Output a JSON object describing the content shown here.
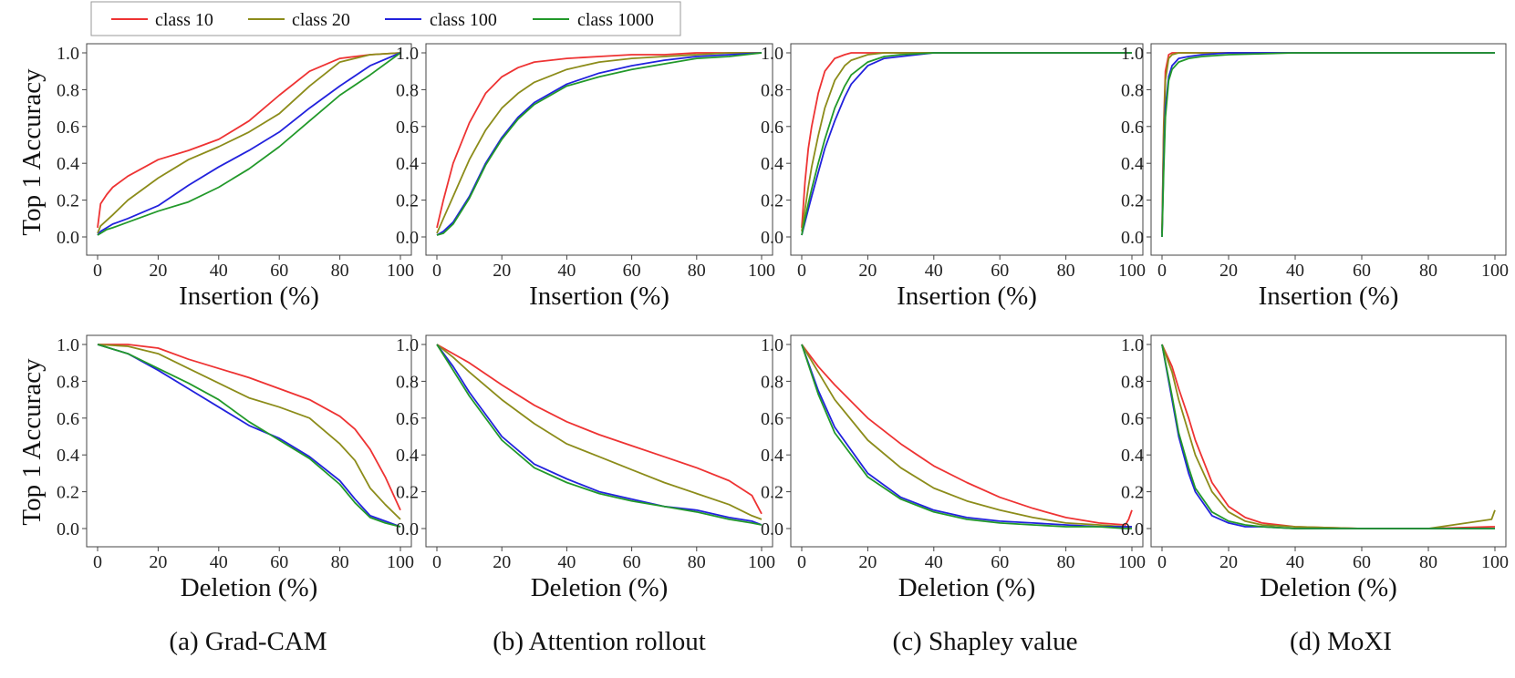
{
  "legend": {
    "placement": "top-left",
    "entries": [
      {
        "name": "class 10",
        "color": "#ee3333"
      },
      {
        "name": "class 20",
        "color": "#8c8c1a"
      },
      {
        "name": "class 100",
        "color": "#2222dd"
      },
      {
        "name": "class 1000",
        "color": "#22992a"
      }
    ]
  },
  "row_ylabels": [
    "Top 1 Accuracy",
    "Top 1 Accuracy"
  ],
  "captions": [
    "(a) Grad-CAM",
    "(b) Attention rollout",
    "(c) Shapley value",
    "(d) MoXI"
  ],
  "chart_data": [
    {
      "type": "line",
      "method": "Grad-CAM",
      "xlabel": "Insertion (%)",
      "ylabel": "Top 1 Accuracy",
      "xlim": [
        0,
        100
      ],
      "ylim": [
        0,
        1
      ],
      "xticks": [
        0,
        20,
        40,
        60,
        80,
        100
      ],
      "yticks": [
        0.0,
        0.2,
        0.4,
        0.6,
        0.8,
        1.0
      ],
      "x": [
        0,
        1,
        3,
        5,
        10,
        20,
        30,
        40,
        50,
        60,
        70,
        80,
        90,
        100
      ],
      "series": [
        {
          "name": "class 10",
          "values": [
            0.05,
            0.18,
            0.23,
            0.27,
            0.33,
            0.42,
            0.47,
            0.53,
            0.63,
            0.77,
            0.9,
            0.97,
            0.99,
            1.0
          ]
        },
        {
          "name": "class 20",
          "values": [
            0.02,
            0.06,
            0.09,
            0.12,
            0.2,
            0.32,
            0.42,
            0.49,
            0.57,
            0.67,
            0.82,
            0.95,
            0.99,
            1.0
          ]
        },
        {
          "name": "class 100",
          "values": [
            0.01,
            0.03,
            0.05,
            0.07,
            0.1,
            0.17,
            0.28,
            0.38,
            0.47,
            0.57,
            0.7,
            0.82,
            0.93,
            1.0
          ]
        },
        {
          "name": "class 1000",
          "values": [
            0.01,
            0.02,
            0.04,
            0.05,
            0.08,
            0.14,
            0.19,
            0.27,
            0.37,
            0.49,
            0.63,
            0.77,
            0.88,
            1.0
          ]
        }
      ]
    },
    {
      "type": "line",
      "method": "Attention rollout",
      "xlabel": "Insertion (%)",
      "ylabel": "",
      "xlim": [
        0,
        100
      ],
      "ylim": [
        0,
        1
      ],
      "xticks": [
        0,
        20,
        40,
        60,
        80,
        100
      ],
      "yticks": [
        0.0,
        0.2,
        0.4,
        0.6,
        0.8,
        1.0
      ],
      "x": [
        0,
        2,
        5,
        10,
        15,
        20,
        25,
        30,
        40,
        50,
        60,
        70,
        80,
        90,
        100
      ],
      "series": [
        {
          "name": "class 10",
          "values": [
            0.05,
            0.2,
            0.4,
            0.62,
            0.78,
            0.87,
            0.92,
            0.95,
            0.97,
            0.98,
            0.99,
            0.99,
            1.0,
            1.0,
            1.0
          ]
        },
        {
          "name": "class 20",
          "values": [
            0.02,
            0.1,
            0.22,
            0.42,
            0.58,
            0.7,
            0.78,
            0.84,
            0.91,
            0.95,
            0.97,
            0.98,
            0.99,
            1.0,
            1.0
          ]
        },
        {
          "name": "class 100",
          "values": [
            0.01,
            0.03,
            0.08,
            0.22,
            0.4,
            0.54,
            0.65,
            0.73,
            0.83,
            0.89,
            0.93,
            0.96,
            0.98,
            0.99,
            1.0
          ]
        },
        {
          "name": "class 1000",
          "values": [
            0.01,
            0.02,
            0.07,
            0.21,
            0.39,
            0.53,
            0.64,
            0.72,
            0.82,
            0.87,
            0.91,
            0.94,
            0.97,
            0.98,
            1.0
          ]
        }
      ]
    },
    {
      "type": "line",
      "method": "Shapley value",
      "xlabel": "Insertion (%)",
      "ylabel": "",
      "xlim": [
        0,
        100
      ],
      "ylim": [
        0,
        1
      ],
      "xticks": [
        0,
        20,
        40,
        60,
        80,
        100
      ],
      "yticks": [
        0.0,
        0.2,
        0.4,
        0.6,
        0.8,
        1.0
      ],
      "x": [
        0,
        1,
        2,
        3,
        5,
        7,
        10,
        13,
        15,
        20,
        25,
        30,
        40,
        50,
        60,
        80,
        100
      ],
      "series": [
        {
          "name": "class 10",
          "values": [
            0.05,
            0.3,
            0.48,
            0.6,
            0.78,
            0.9,
            0.97,
            0.99,
            1.0,
            1.0,
            1.0,
            1.0,
            1.0,
            1.0,
            1.0,
            1.0,
            1.0
          ]
        },
        {
          "name": "class 20",
          "values": [
            0.03,
            0.15,
            0.27,
            0.38,
            0.55,
            0.7,
            0.85,
            0.93,
            0.96,
            0.99,
            1.0,
            1.0,
            1.0,
            1.0,
            1.0,
            1.0,
            1.0
          ]
        },
        {
          "name": "class 100",
          "values": [
            0.01,
            0.08,
            0.15,
            0.22,
            0.35,
            0.48,
            0.63,
            0.76,
            0.83,
            0.93,
            0.97,
            0.98,
            1.0,
            1.0,
            1.0,
            1.0,
            1.0
          ]
        },
        {
          "name": "class 1000",
          "values": [
            0.01,
            0.1,
            0.18,
            0.26,
            0.4,
            0.53,
            0.7,
            0.82,
            0.88,
            0.95,
            0.98,
            0.99,
            1.0,
            1.0,
            1.0,
            1.0,
            1.0
          ]
        }
      ]
    },
    {
      "type": "line",
      "method": "MoXI",
      "xlabel": "Insertion (%)",
      "ylabel": "",
      "xlim": [
        0,
        100
      ],
      "ylim": [
        0,
        1
      ],
      "xticks": [
        0,
        20,
        40,
        60,
        80,
        100
      ],
      "yticks": [
        0.0,
        0.2,
        0.4,
        0.6,
        0.8,
        1.0
      ],
      "x": [
        0,
        0.5,
        1,
        2,
        3,
        5,
        8,
        12,
        20,
        40,
        100
      ],
      "series": [
        {
          "name": "class 10",
          "values": [
            0.02,
            0.6,
            0.9,
            0.99,
            1.0,
            1.0,
            1.0,
            1.0,
            1.0,
            1.0,
            1.0
          ]
        },
        {
          "name": "class 20",
          "values": [
            0.02,
            0.55,
            0.85,
            0.97,
            0.99,
            1.0,
            1.0,
            1.0,
            1.0,
            1.0,
            1.0
          ]
        },
        {
          "name": "class 100",
          "values": [
            0.0,
            0.4,
            0.7,
            0.87,
            0.93,
            0.97,
            0.98,
            0.99,
            1.0,
            1.0,
            1.0
          ]
        },
        {
          "name": "class 1000",
          "values": [
            0.0,
            0.35,
            0.65,
            0.85,
            0.91,
            0.95,
            0.97,
            0.98,
            0.99,
            1.0,
            1.0
          ]
        }
      ]
    },
    {
      "type": "line",
      "method": "Grad-CAM",
      "xlabel": "Deletion (%)",
      "ylabel": "Top 1 Accuracy",
      "xlim": [
        0,
        100
      ],
      "ylim": [
        0,
        1
      ],
      "xticks": [
        0,
        20,
        40,
        60,
        80,
        100
      ],
      "yticks": [
        0.0,
        0.2,
        0.4,
        0.6,
        0.8,
        1.0
      ],
      "x": [
        0,
        10,
        20,
        30,
        40,
        50,
        60,
        70,
        80,
        85,
        90,
        95,
        100
      ],
      "series": [
        {
          "name": "class 10",
          "values": [
            1.0,
            1.0,
            0.98,
            0.92,
            0.87,
            0.82,
            0.76,
            0.7,
            0.61,
            0.54,
            0.43,
            0.28,
            0.1
          ]
        },
        {
          "name": "class 20",
          "values": [
            1.0,
            0.99,
            0.95,
            0.87,
            0.79,
            0.71,
            0.66,
            0.6,
            0.46,
            0.37,
            0.22,
            0.13,
            0.05
          ]
        },
        {
          "name": "class 100",
          "values": [
            1.0,
            0.95,
            0.86,
            0.76,
            0.66,
            0.56,
            0.49,
            0.39,
            0.26,
            0.16,
            0.07,
            0.04,
            0.01
          ]
        },
        {
          "name": "class 1000",
          "values": [
            1.0,
            0.95,
            0.87,
            0.79,
            0.7,
            0.58,
            0.48,
            0.38,
            0.24,
            0.14,
            0.06,
            0.03,
            0.01
          ]
        }
      ]
    },
    {
      "type": "line",
      "method": "Attention rollout",
      "xlabel": "Deletion (%)",
      "ylabel": "",
      "xlim": [
        0,
        100
      ],
      "ylim": [
        0,
        1
      ],
      "xticks": [
        0,
        20,
        40,
        60,
        80,
        100
      ],
      "yticks": [
        0.0,
        0.2,
        0.4,
        0.6,
        0.8,
        1.0
      ],
      "x": [
        0,
        5,
        10,
        20,
        30,
        40,
        50,
        60,
        70,
        80,
        90,
        97,
        100
      ],
      "series": [
        {
          "name": "class 10",
          "values": [
            1.0,
            0.95,
            0.9,
            0.78,
            0.67,
            0.58,
            0.51,
            0.45,
            0.39,
            0.33,
            0.26,
            0.18,
            0.08
          ]
        },
        {
          "name": "class 20",
          "values": [
            1.0,
            0.93,
            0.85,
            0.7,
            0.57,
            0.46,
            0.39,
            0.32,
            0.25,
            0.19,
            0.13,
            0.07,
            0.05
          ]
        },
        {
          "name": "class 100",
          "values": [
            1.0,
            0.88,
            0.74,
            0.5,
            0.35,
            0.27,
            0.2,
            0.16,
            0.12,
            0.1,
            0.06,
            0.04,
            0.02
          ]
        },
        {
          "name": "class 1000",
          "values": [
            1.0,
            0.86,
            0.72,
            0.48,
            0.33,
            0.25,
            0.19,
            0.15,
            0.12,
            0.09,
            0.05,
            0.03,
            0.02
          ]
        }
      ]
    },
    {
      "type": "line",
      "method": "Shapley value",
      "xlabel": "Deletion (%)",
      "ylabel": "",
      "xlim": [
        0,
        100
      ],
      "ylim": [
        0,
        1
      ],
      "xticks": [
        0,
        20,
        40,
        60,
        80,
        100
      ],
      "yticks": [
        0.0,
        0.2,
        0.4,
        0.6,
        0.8,
        1.0
      ],
      "x": [
        0,
        5,
        10,
        20,
        30,
        40,
        50,
        60,
        70,
        80,
        90,
        98,
        99,
        100
      ],
      "series": [
        {
          "name": "class 10",
          "values": [
            1.0,
            0.88,
            0.78,
            0.6,
            0.46,
            0.34,
            0.25,
            0.17,
            0.11,
            0.06,
            0.03,
            0.02,
            0.05,
            0.1
          ]
        },
        {
          "name": "class 20",
          "values": [
            1.0,
            0.85,
            0.7,
            0.48,
            0.33,
            0.22,
            0.15,
            0.1,
            0.06,
            0.03,
            0.02,
            0.01,
            0.01,
            0.01
          ]
        },
        {
          "name": "class 100",
          "values": [
            1.0,
            0.75,
            0.55,
            0.3,
            0.17,
            0.1,
            0.06,
            0.04,
            0.03,
            0.02,
            0.01,
            0.01,
            0.01,
            0.01
          ]
        },
        {
          "name": "class 1000",
          "values": [
            1.0,
            0.73,
            0.52,
            0.28,
            0.16,
            0.09,
            0.05,
            0.03,
            0.02,
            0.01,
            0.01,
            0.0,
            0.0,
            0.0
          ]
        }
      ]
    },
    {
      "type": "line",
      "method": "MoXI",
      "xlabel": "Deletion (%)",
      "ylabel": "",
      "xlim": [
        0,
        100
      ],
      "ylim": [
        0,
        1
      ],
      "xticks": [
        0,
        20,
        40,
        60,
        80,
        100
      ],
      "yticks": [
        0.0,
        0.2,
        0.4,
        0.6,
        0.8,
        1.0
      ],
      "x": [
        0,
        3,
        5,
        8,
        10,
        15,
        20,
        25,
        30,
        40,
        60,
        80,
        99,
        100
      ],
      "series": [
        {
          "name": "class 10",
          "values": [
            1.0,
            0.88,
            0.76,
            0.6,
            0.48,
            0.25,
            0.12,
            0.06,
            0.03,
            0.01,
            0.0,
            0.0,
            0.01,
            0.01
          ]
        },
        {
          "name": "class 20",
          "values": [
            1.0,
            0.85,
            0.7,
            0.52,
            0.4,
            0.2,
            0.09,
            0.04,
            0.02,
            0.01,
            0.0,
            0.0,
            0.05,
            0.1
          ]
        },
        {
          "name": "class 100",
          "values": [
            1.0,
            0.7,
            0.5,
            0.3,
            0.2,
            0.07,
            0.03,
            0.01,
            0.01,
            0.0,
            0.0,
            0.0,
            0.0,
            0.0
          ]
        },
        {
          "name": "class 1000",
          "values": [
            1.0,
            0.72,
            0.52,
            0.33,
            0.22,
            0.09,
            0.04,
            0.02,
            0.01,
            0.0,
            0.0,
            0.0,
            0.0,
            0.0
          ]
        }
      ]
    }
  ]
}
